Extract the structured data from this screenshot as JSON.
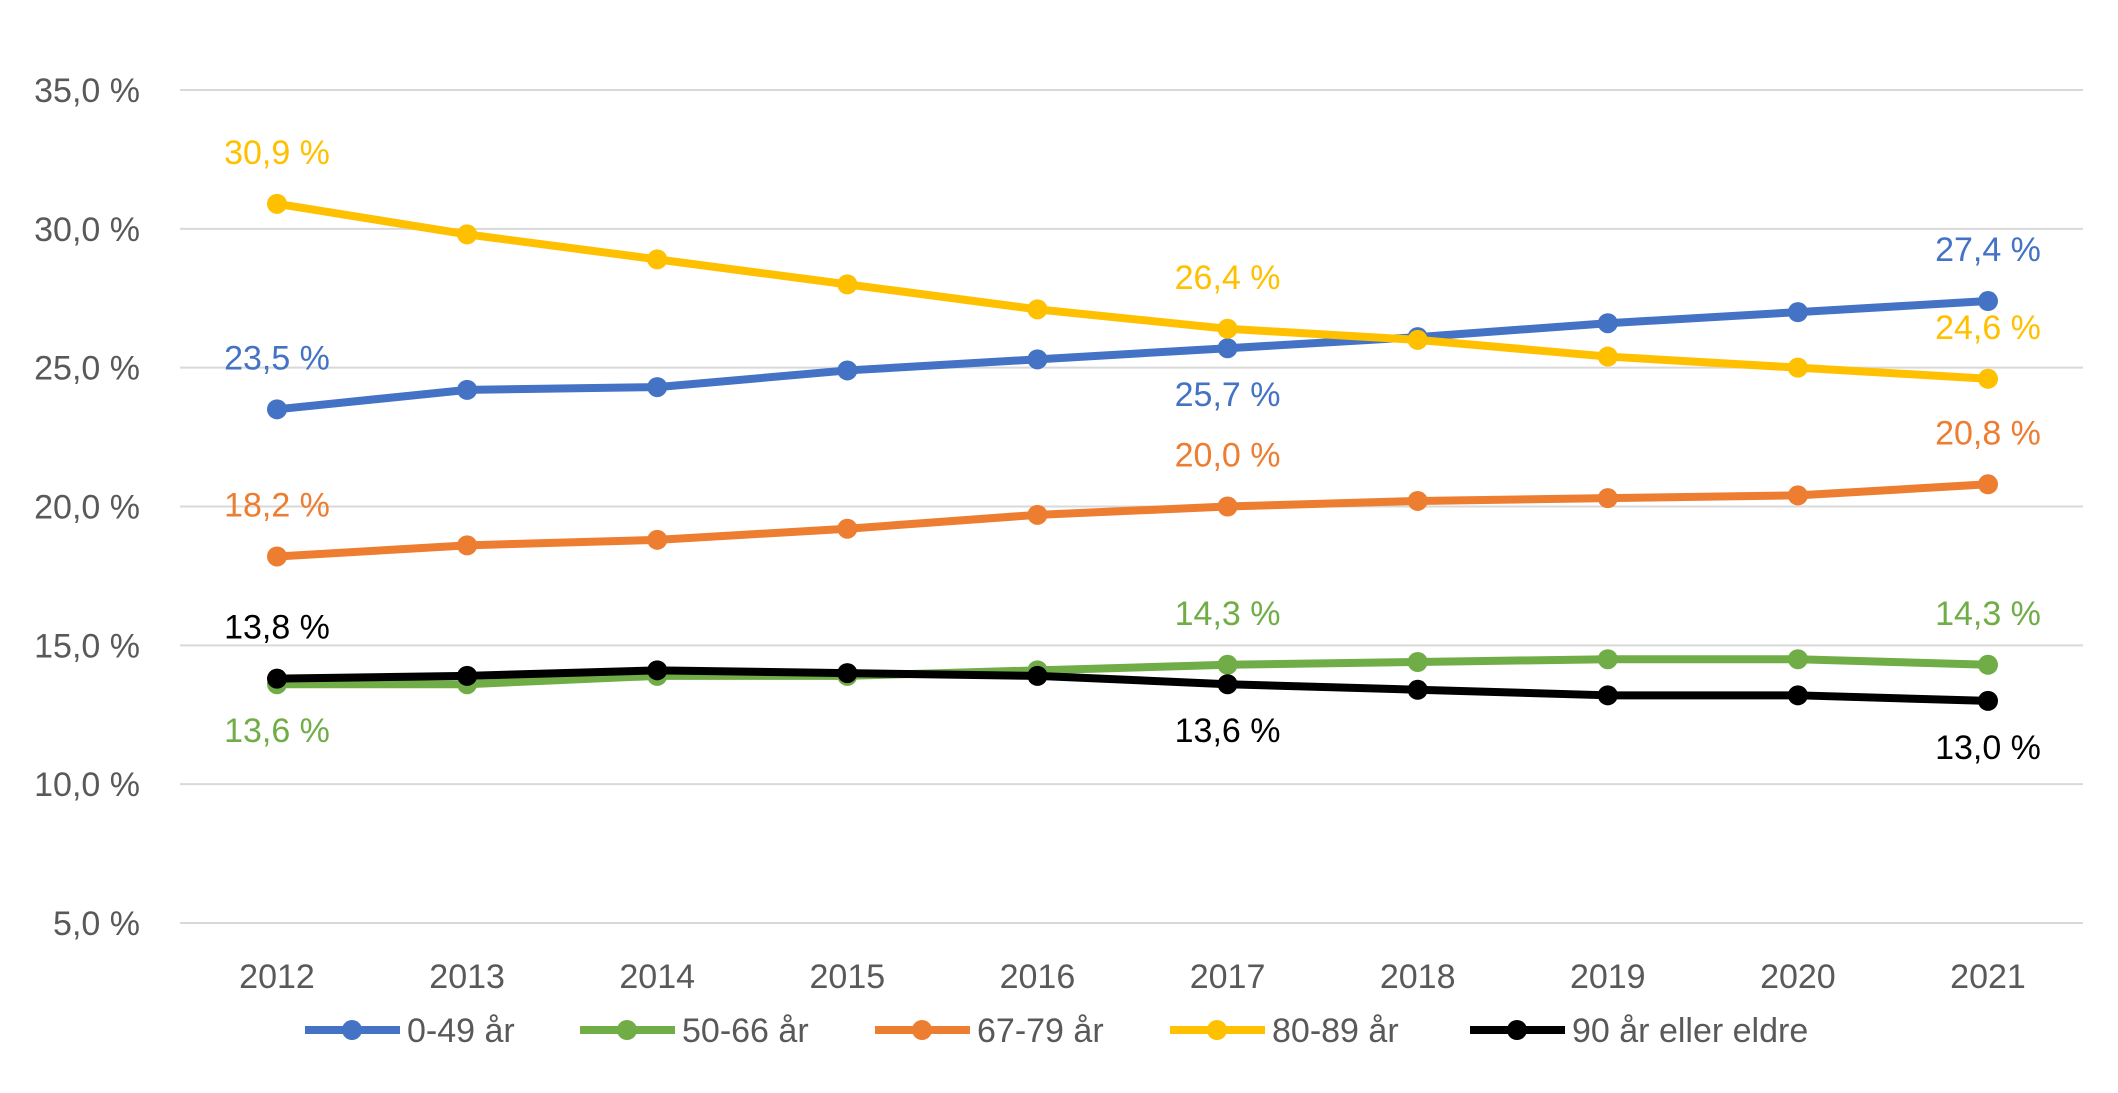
{
  "chart_data": {
    "type": "line",
    "title": "",
    "xlabel": "",
    "ylabel": "",
    "ylim": [
      5,
      35
    ],
    "yticks": [
      "5,0 %",
      "10,0 %",
      "15,0 %",
      "20,0 %",
      "25,0 %",
      "30,0 %",
      "35,0 %"
    ],
    "ytick_values": [
      5,
      10,
      15,
      20,
      25,
      30,
      35
    ],
    "grid": true,
    "legend_position": "bottom",
    "categories": [
      "2012",
      "2013",
      "2014",
      "2015",
      "2016",
      "2017",
      "2018",
      "2019",
      "2020",
      "2021"
    ],
    "series": [
      {
        "name": "0-49 år",
        "color": "#4472C4",
        "values": [
          23.5,
          24.2,
          24.3,
          24.9,
          25.3,
          25.7,
          26.1,
          26.6,
          27.0,
          27.4
        ],
        "labels": [
          {
            "index": 0,
            "text": "23,5 %",
            "pos": "above"
          },
          {
            "index": 5,
            "text": "25,7 %",
            "pos": "below"
          },
          {
            "index": 9,
            "text": "27,4 %",
            "pos": "above"
          }
        ]
      },
      {
        "name": "50-66 år",
        "color": "#70AD47",
        "values": [
          13.6,
          13.6,
          13.9,
          13.9,
          14.1,
          14.3,
          14.4,
          14.5,
          14.5,
          14.3
        ],
        "labels": [
          {
            "index": 0,
            "text": "13,6 %",
            "pos": "below"
          },
          {
            "index": 5,
            "text": "14,3 %",
            "pos": "above"
          },
          {
            "index": 9,
            "text": "14,3 %",
            "pos": "above"
          }
        ]
      },
      {
        "name": "67-79 år",
        "color": "#ED7D31",
        "values": [
          18.2,
          18.6,
          18.8,
          19.2,
          19.7,
          20.0,
          20.2,
          20.3,
          20.4,
          20.8
        ],
        "labels": [
          {
            "index": 0,
            "text": "18,2 %",
            "pos": "above"
          },
          {
            "index": 5,
            "text": "20,0 %",
            "pos": "above"
          },
          {
            "index": 9,
            "text": "20,8 %",
            "pos": "above"
          }
        ]
      },
      {
        "name": "80-89 år",
        "color": "#FFC000",
        "values": [
          30.9,
          29.8,
          28.9,
          28.0,
          27.1,
          26.4,
          26.0,
          25.4,
          25.0,
          24.6
        ],
        "labels": [
          {
            "index": 0,
            "text": "30,9 %",
            "pos": "above"
          },
          {
            "index": 5,
            "text": "26,4 %",
            "pos": "above"
          },
          {
            "index": 9,
            "text": "24,6 %",
            "pos": "above"
          }
        ]
      },
      {
        "name": "90 år eller eldre",
        "color": "#000000",
        "values": [
          13.8,
          13.9,
          14.1,
          14.0,
          13.9,
          13.6,
          13.4,
          13.2,
          13.2,
          13.0
        ],
        "labels": [
          {
            "index": 0,
            "text": "13,8 %",
            "pos": "above"
          },
          {
            "index": 5,
            "text": "13,6 %",
            "pos": "below"
          },
          {
            "index": 9,
            "text": "13,0 %",
            "pos": "below"
          }
        ]
      }
    ]
  }
}
